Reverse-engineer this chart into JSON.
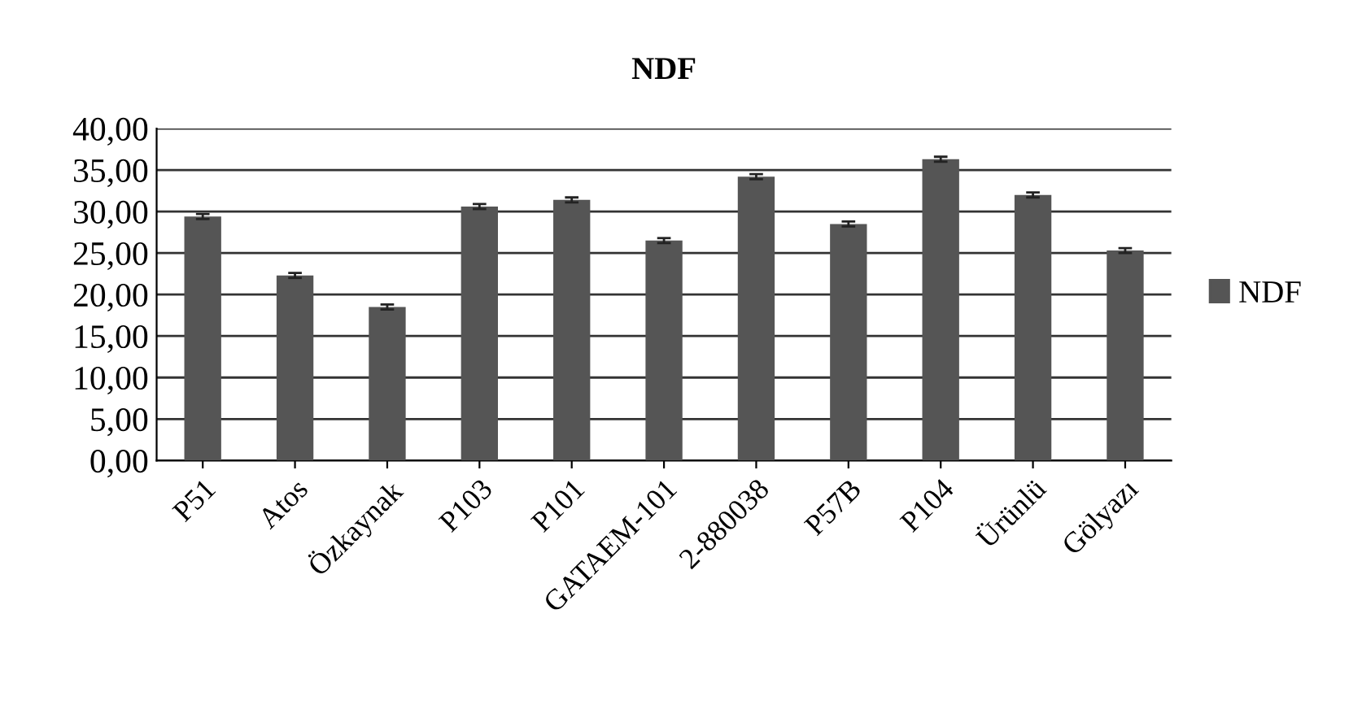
{
  "chart_data": {
    "type": "bar",
    "title": "NDF",
    "categories": [
      "P51",
      "Atos",
      "Özkaynak",
      "P103",
      "P101",
      "GATAEM-101",
      "2-880038",
      "P57B",
      "P104",
      "Ürünlü",
      "Gölyazı"
    ],
    "series": [
      {
        "name": "NDF",
        "color": "#555555",
        "values": [
          29.4,
          22.3,
          18.5,
          30.6,
          31.4,
          26.5,
          34.2,
          28.5,
          36.3,
          32.0,
          25.3
        ],
        "errors": [
          0.3,
          0.3,
          0.3,
          0.3,
          0.3,
          0.3,
          0.3,
          0.3,
          0.3,
          0.3,
          0.3
        ]
      }
    ],
    "ylim": [
      0,
      40
    ],
    "yticks": [
      {
        "value": 0,
        "label": "0,00"
      },
      {
        "value": 5,
        "label": "5,00"
      },
      {
        "value": 10,
        "label": "10,00"
      },
      {
        "value": 15,
        "label": "15,00"
      },
      {
        "value": 20,
        "label": "20,00"
      },
      {
        "value": 25,
        "label": "25,00"
      },
      {
        "value": 30,
        "label": "30,00"
      },
      {
        "value": 35,
        "label": "35,00"
      },
      {
        "value": 40,
        "label": "40,00"
      }
    ],
    "grid": "y",
    "legend": "right"
  }
}
